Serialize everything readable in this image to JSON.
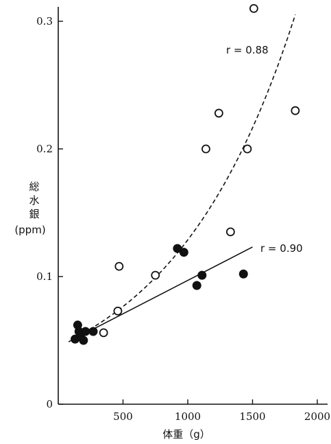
{
  "chart_data": {
    "type": "scatter",
    "xlabel": "体重（g）",
    "ylabel": [
      "総",
      "水",
      "銀",
      "(ppm)"
    ],
    "xlim": [
      0,
      2000
    ],
    "ylim": [
      0,
      0.31
    ],
    "xticks": [
      500,
      1000,
      1500,
      2000
    ],
    "yticks": [
      0,
      0.1,
      0.2,
      0.3
    ],
    "xtick_labels": [
      "500",
      "1000",
      "1500",
      "2000"
    ],
    "ytick_labels": [
      "0",
      "0.1",
      "0.2",
      "0.3"
    ],
    "grid": false,
    "series": [
      {
        "marker": "open-circle",
        "points": [
          [
            350,
            0.056
          ],
          [
            460,
            0.073
          ],
          [
            470,
            0.108
          ],
          [
            750,
            0.101
          ],
          [
            1140,
            0.2
          ],
          [
            1240,
            0.228
          ],
          [
            1330,
            0.135
          ],
          [
            1460,
            0.2
          ],
          [
            1510,
            0.31
          ],
          [
            1830,
            0.23
          ]
        ],
        "fit": {
          "style": "dashed",
          "type": "exponential",
          "x_range": [
            150,
            1830
          ],
          "a": 0.0455,
          "b": 0.00104
        },
        "annotation": "r = 0.88"
      },
      {
        "marker": "filled-circle",
        "points": [
          [
            130,
            0.051
          ],
          [
            150,
            0.062
          ],
          [
            160,
            0.057
          ],
          [
            175,
            0.055
          ],
          [
            195,
            0.05
          ],
          [
            210,
            0.057
          ],
          [
            270,
            0.057
          ],
          [
            920,
            0.122
          ],
          [
            970,
            0.119
          ],
          [
            1070,
            0.093
          ],
          [
            1110,
            0.101
          ],
          [
            1430,
            0.102
          ]
        ],
        "fit": {
          "style": "solid",
          "type": "linear",
          "x_range": [
            80,
            1500
          ],
          "slope": 5.23e-05,
          "intercept": 0.0447
        },
        "annotation": "r = 0.90"
      }
    ]
  }
}
